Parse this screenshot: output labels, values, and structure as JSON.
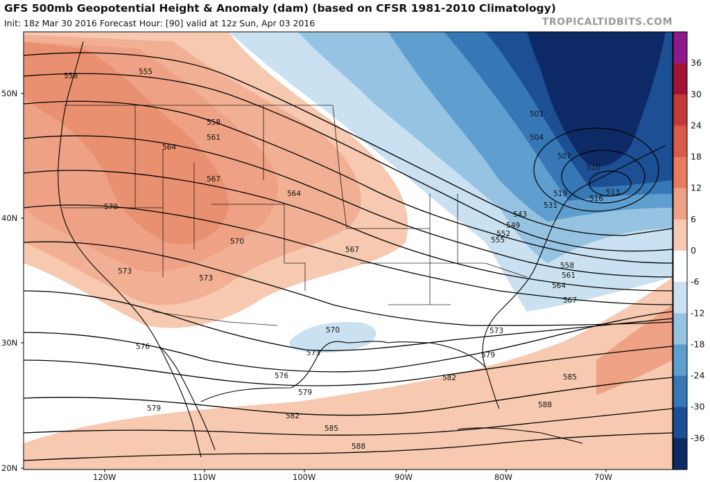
{
  "header": {
    "title": "GFS 500mb Geopotential Height & Anomaly (dam) (based on CFSR 1981-2010 Climatology)",
    "subtitle": "Init: 18z Mar 30 2016   Forecast Hour: [90]   valid at 12z Sun, Apr 03 2016",
    "brand": "TROPICALTIDBITS.COM"
  },
  "colorbar": {
    "labels": [
      "36",
      "30",
      "24",
      "18",
      "12",
      "6",
      "0",
      "-6",
      "-12",
      "-18",
      "-24",
      "-30",
      "-36"
    ],
    "colors": [
      "#8e1a8e",
      "#a01535",
      "#c03a3a",
      "#d85a48",
      "#e57c60",
      "#eea184",
      "#f6c9b0",
      "#ffffff",
      "#c9e1f0",
      "#97c3e2",
      "#5f9fcf",
      "#3677b6",
      "#1c4f93",
      "#0e2a66"
    ]
  },
  "axes": {
    "lat_labels": [
      "50N",
      "40N",
      "30N",
      "20N"
    ],
    "lon_labels": [
      "120W",
      "110W",
      "100W",
      "90W",
      "80W",
      "70W"
    ]
  },
  "contours": {
    "labels": [
      "558",
      "555",
      "558",
      "561",
      "564",
      "567",
      "570",
      "564",
      "570",
      "567",
      "573",
      "573",
      "576",
      "576",
      "579",
      "579",
      "570",
      "573",
      "573",
      "582",
      "582",
      "585",
      "585",
      "588",
      "588",
      "579",
      "567",
      "564",
      "561",
      "558",
      "555",
      "552",
      "549",
      "543",
      "531",
      "519",
      "516",
      "513",
      "510",
      "507",
      "504",
      "501"
    ]
  }
}
